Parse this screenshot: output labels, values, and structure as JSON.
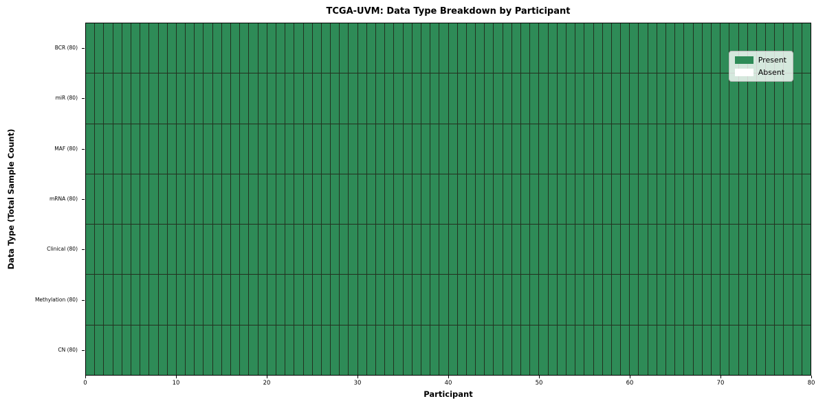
{
  "title": "TCGA-UVM: Data Type Breakdown by Participant",
  "axes": {
    "x_label": "Participant",
    "y_label": "Data Type (Total Sample Count)",
    "x_ticks": [
      0,
      10,
      20,
      30,
      40,
      50,
      60,
      70,
      80
    ],
    "y_tick_labels": [
      "BCR (80)",
      "miR (80)",
      "MAF (80)",
      "mRNA (80)",
      "Clinical (80)",
      "Methylation (80)",
      "CN (80)"
    ]
  },
  "legend": {
    "items": [
      {
        "label": "Present",
        "color": "#2e8b57"
      },
      {
        "label": "Absent",
        "color": "#ffffff"
      }
    ],
    "background": "rgba(255,255,255,0.8)"
  },
  "colors": {
    "present": "#2e8b57",
    "absent": "#ffffff",
    "grid_line": "#22301f",
    "spine": "#000000"
  },
  "chart_data": {
    "type": "heatmap",
    "title": "TCGA-UVM: Data Type Breakdown by Participant",
    "xlabel": "Participant",
    "ylabel": "Data Type (Total Sample Count)",
    "x_range": [
      0,
      80
    ],
    "participants": 80,
    "x_tick_values": [
      0,
      10,
      20,
      30,
      40,
      50,
      60,
      70,
      80
    ],
    "rows": [
      {
        "label": "BCR (80)",
        "total": 80,
        "present_count": 80,
        "absent_count": 0
      },
      {
        "label": "miR (80)",
        "total": 80,
        "present_count": 80,
        "absent_count": 0
      },
      {
        "label": "MAF (80)",
        "total": 80,
        "present_count": 80,
        "absent_count": 0
      },
      {
        "label": "mRNA (80)",
        "total": 80,
        "present_count": 80,
        "absent_count": 0
      },
      {
        "label": "Clinical (80)",
        "total": 80,
        "present_count": 80,
        "absent_count": 0
      },
      {
        "label": "Methylation (80)",
        "total": 80,
        "present_count": 80,
        "absent_count": 0
      },
      {
        "label": "CN (80)",
        "total": 80,
        "present_count": 80,
        "absent_count": 0
      }
    ],
    "cell_encoding": "1 = Present (green), 0 = Absent (white); every cell in the 7x80 matrix = 1",
    "legend_entries": [
      "Present",
      "Absent"
    ],
    "legend_position": "upper right",
    "grid": "cell borders on"
  }
}
